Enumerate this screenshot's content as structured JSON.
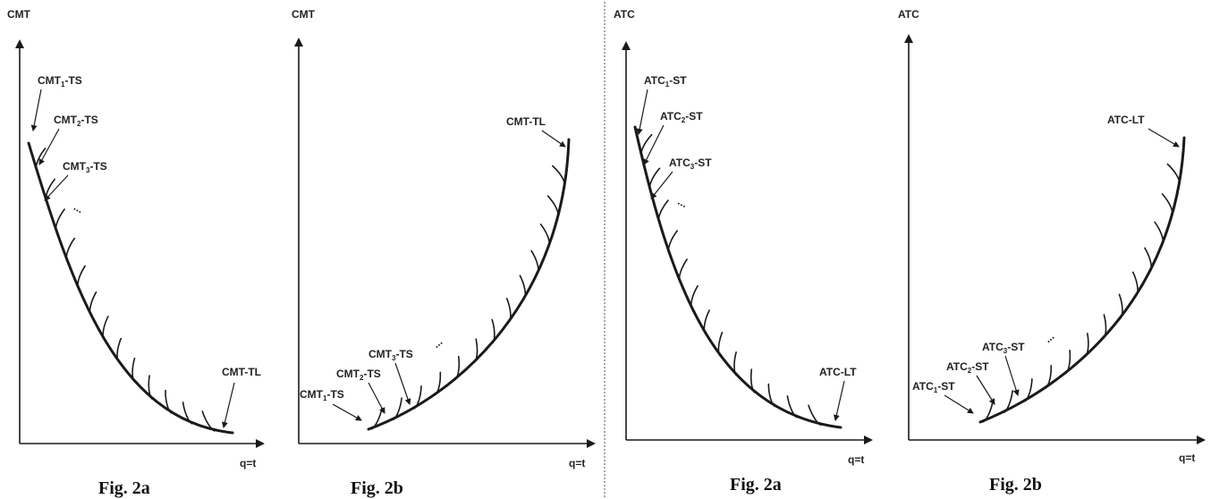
{
  "panels": [
    {
      "y_axis": "CMT",
      "x_axis": "q=t",
      "caption": "Fig. 2a",
      "long_run": "CMT-TL",
      "short_run": [
        "CMT1-TS",
        "CMT2-TS",
        "CMT3-TS"
      ],
      "subscripts": [
        "1",
        "2",
        "3"
      ],
      "ellipsis": "..."
    },
    {
      "y_axis": "CMT",
      "x_axis": "q=t",
      "caption": "Fig. 2b",
      "long_run": "CMT-TL",
      "short_run": [
        "CMT1-TS",
        "CMT2-TS",
        "CMT3-TS"
      ],
      "subscripts": [
        "1",
        "2",
        "3"
      ],
      "ellipsis": "..."
    },
    {
      "y_axis": "ATC",
      "x_axis": "q=t",
      "caption": "Fig. 2a",
      "long_run": "ATC-LT",
      "short_run": [
        "ATC1-ST",
        "ATC2-ST",
        "ATC3-ST"
      ],
      "subscripts": [
        "1",
        "2",
        "3"
      ],
      "ellipsis": "..."
    },
    {
      "y_axis": "ATC",
      "x_axis": "q=t",
      "caption": "Fig. 2b",
      "long_run": "ATC-LT",
      "short_run": [
        "ATC1-ST",
        "ATC2-ST",
        "ATC3-ST"
      ],
      "subscripts": [
        "1",
        "2",
        "3"
      ],
      "ellipsis": "..."
    }
  ]
}
